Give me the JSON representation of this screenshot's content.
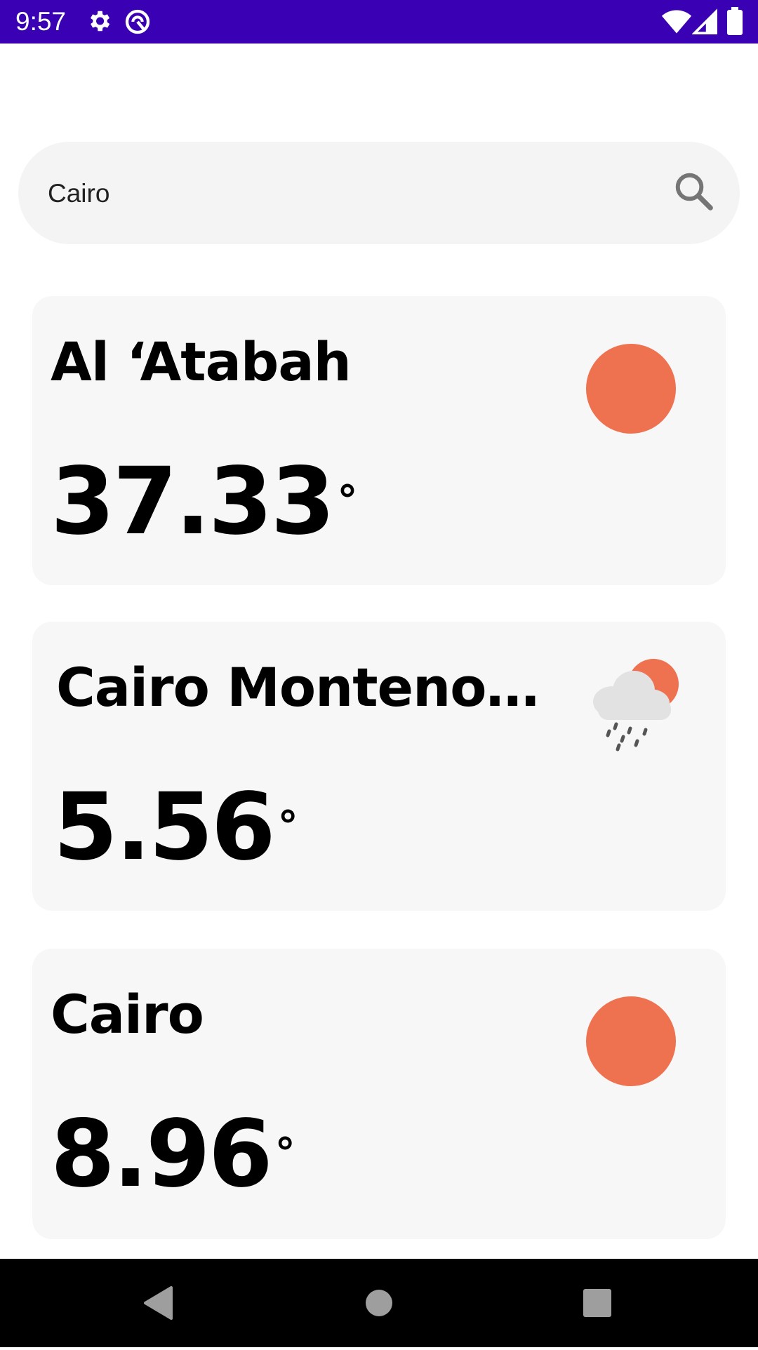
{
  "status_bar": {
    "time": "9:57",
    "icons": [
      "gear-icon",
      "sync-icon",
      "wifi-icon",
      "signal-icon",
      "battery-icon"
    ],
    "background": "#3a00b3"
  },
  "search": {
    "value": "Cairo",
    "icon": "search-icon"
  },
  "results": [
    {
      "name": "Al ‘Atabah",
      "temperature": "37.33",
      "degree_symbol": "°",
      "weather_icon": "sun-icon"
    },
    {
      "name": "Cairo Montenot...",
      "temperature": "5.56",
      "degree_symbol": "°",
      "weather_icon": "rain-cloud-sun-icon"
    },
    {
      "name": "Cairo",
      "temperature": "8.96",
      "degree_symbol": "°",
      "weather_icon": "sun-icon"
    }
  ],
  "colors": {
    "accent": "#3a00b3",
    "sun": "#ee7150",
    "card_background": "#f7f7f7"
  },
  "nav_bar": {
    "icons": [
      "back-icon",
      "home-icon",
      "recents-icon"
    ]
  }
}
